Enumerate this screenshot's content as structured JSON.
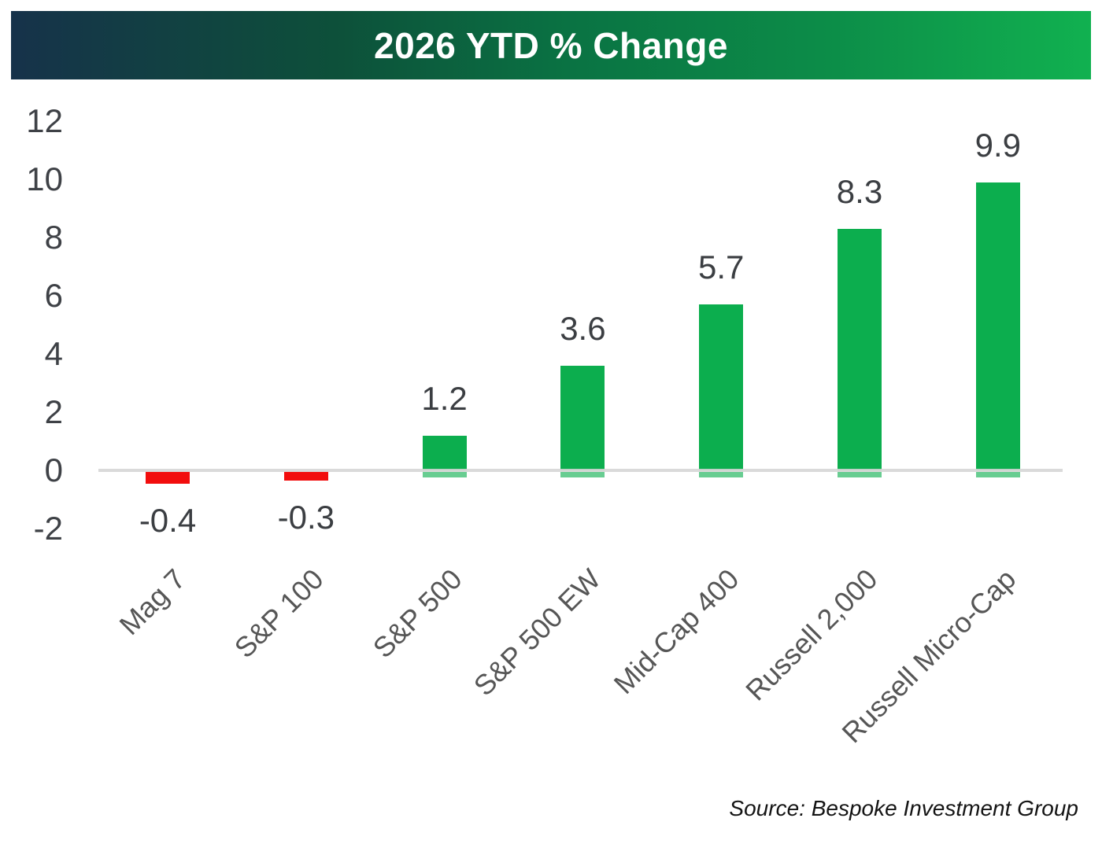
{
  "header": {
    "title": "2026 YTD % Change",
    "gradient_left": "#16324a",
    "gradient_mid": "#0a7343",
    "gradient_right": "#11b150",
    "title_color": "#ffffff"
  },
  "chart_data": {
    "type": "bar",
    "title": "2026 YTD % Change",
    "categories": [
      "Mag 7",
      "S&P 100",
      "S&P 500",
      "S&P 500 EW",
      "Mid-Cap 400",
      "Russell 2,000",
      "Russell Micro-Cap"
    ],
    "values": [
      -0.4,
      -0.3,
      1.2,
      3.6,
      5.7,
      8.3,
      9.9
    ],
    "data_labels": [
      "-0.4",
      "-0.3",
      "1.2",
      "3.6",
      "5.7",
      "8.3",
      "9.9"
    ],
    "y_ticks": [
      -2,
      0,
      2,
      4,
      6,
      8,
      10,
      12
    ],
    "ylim": [
      -2,
      12
    ],
    "grid": false,
    "legend": false,
    "positive_color": "#0cae4e",
    "negative_color": "#f20d0d",
    "axis_line_color": "#d6d6d6",
    "tick_label_color": "#3e4146",
    "data_label_color": "#3b3e42",
    "category_label_color": "#565656"
  },
  "source": {
    "text": "Source: Bespoke Investment Group"
  }
}
